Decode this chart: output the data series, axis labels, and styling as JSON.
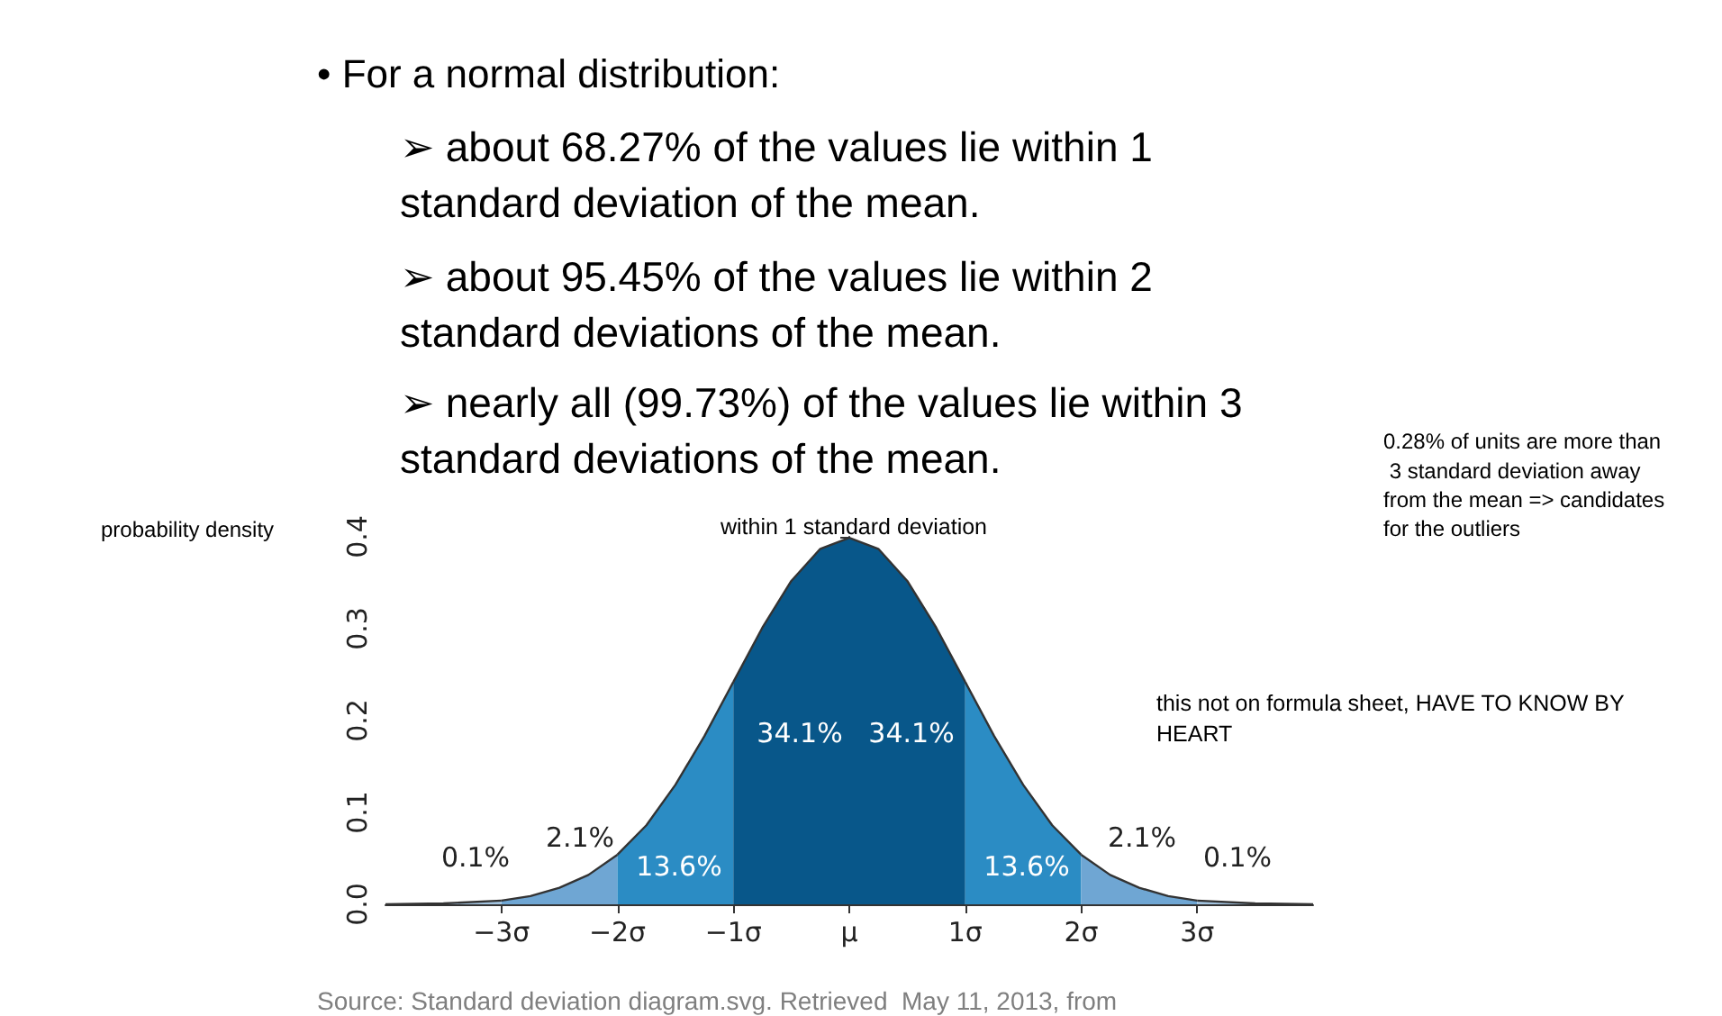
{
  "chart_data": {
    "type": "area",
    "title": "• For a normal distribution:",
    "ylabel": "probability density",
    "xlim": [
      -4,
      4
    ],
    "ylim": [
      0,
      0.4
    ],
    "xticks": [
      {
        "value": -3,
        "label": "−3σ"
      },
      {
        "value": -2,
        "label": "−2σ"
      },
      {
        "value": -1,
        "label": "−1σ"
      },
      {
        "value": 0,
        "label": "μ"
      },
      {
        "value": 1,
        "label": "1σ"
      },
      {
        "value": 2,
        "label": "2σ"
      },
      {
        "value": 3,
        "label": "3σ"
      }
    ],
    "yticks": [
      {
        "value": 0,
        "label": "0.0"
      },
      {
        "value": 0.1,
        "label": "0.1"
      },
      {
        "value": 0.2,
        "label": "0.2"
      },
      {
        "value": 0.3,
        "label": "0.3"
      },
      {
        "value": 0.4,
        "label": "0.4"
      }
    ],
    "series": [
      {
        "color": "#a3c4e0",
        "x": [
          -4,
          -3.5,
          -3
        ],
        "values": [
          0.0,
          0.001,
          0.004
        ]
      },
      {
        "color": "#6fa6d3",
        "x": [
          -3,
          -2.75,
          -2.5,
          -2.25,
          -2
        ],
        "values": [
          0.004,
          0.009,
          0.018,
          0.032,
          0.054
        ]
      },
      {
        "color": "#2b8cc4",
        "x": [
          -2,
          -1.75,
          -1.5,
          -1.25,
          -1
        ],
        "values": [
          0.054,
          0.086,
          0.13,
          0.183,
          0.242
        ]
      },
      {
        "color": "#08578a",
        "x": [
          -1,
          -0.75,
          -0.5,
          -0.25,
          0,
          0.25,
          0.5,
          0.75,
          1
        ],
        "values": [
          0.242,
          0.301,
          0.352,
          0.387,
          0.399,
          0.387,
          0.352,
          0.301,
          0.242
        ]
      },
      {
        "color": "#2b8cc4",
        "x": [
          1,
          1.25,
          1.5,
          1.75,
          2
        ],
        "values": [
          0.242,
          0.183,
          0.13,
          0.086,
          0.054
        ]
      },
      {
        "color": "#6fa6d3",
        "x": [
          2,
          2.25,
          2.5,
          2.75,
          3
        ],
        "values": [
          0.054,
          0.032,
          0.018,
          0.009,
          0.004
        ]
      },
      {
        "color": "#a3c4e0",
        "x": [
          3,
          3.5,
          4
        ],
        "values": [
          0.004,
          0.001,
          0.0
        ]
      }
    ],
    "annotations": [
      "➢ about 68.27% of the values lie within 1 standard deviation of the mean.",
      "➢ about 95.45% of the values lie within 2 standard deviations of the mean.",
      "➢ nearly all (99.73%) of the values lie within 3 standard deviations of the mean.",
      "within 1 standard deviation",
      "0.28% of units are more than 3 standard deviation away from the mean => candidates for the outliers",
      "this not on formula sheet, HAVE TO KNOW BY HEART",
      "Source: Standard deviation diagram.svg. Retrieved  May 11, 2013, from",
      "0.1%",
      "2.1%",
      "13.6%",
      "34.1%",
      "34.1%",
      "13.6%",
      "2.1%",
      "0.1%"
    ]
  }
}
